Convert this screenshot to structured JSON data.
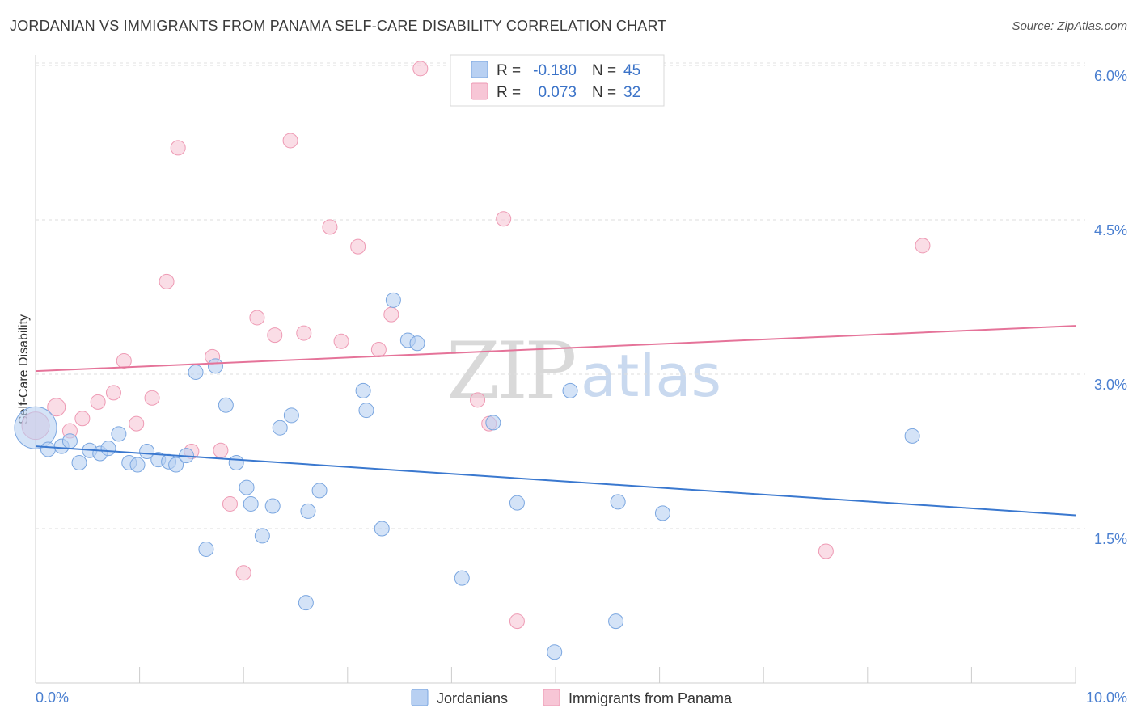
{
  "header": {
    "title": "JORDANIAN VS IMMIGRANTS FROM PANAMA SELF-CARE DISABILITY CORRELATION CHART",
    "source": "Source: ZipAtlas.com"
  },
  "watermark": {
    "zip": "ZIP",
    "atlas": "atlas"
  },
  "colors": {
    "blue_fill": "#b8d0f2",
    "blue_stroke": "#7aa6e0",
    "blue_line": "#3a78cf",
    "pink_fill": "#f7c6d6",
    "pink_stroke": "#ee9ab4",
    "pink_line": "#e57399"
  },
  "legend": {
    "rows": [
      {
        "r_label": "R =",
        "r_value": "-0.180",
        "n_label": "N =",
        "n_value": "45"
      },
      {
        "r_label": "R =",
        "r_value": "0.073",
        "n_label": "N =",
        "n_value": "32"
      }
    ]
  },
  "chart_data": {
    "type": "scatter",
    "ylabel": "Self-Care Disability",
    "xlim": [
      0,
      10
    ],
    "ylim": [
      0,
      6.4
    ],
    "x_tick_labels": [
      "0.0%",
      "10.0%"
    ],
    "y_ticks": [
      1.5,
      3.0,
      4.5,
      6.0
    ],
    "y_tick_labels": [
      "1.5%",
      "3.0%",
      "4.5%",
      "6.0%"
    ],
    "grid": true,
    "legend_position": "top-center",
    "series": [
      {
        "name": "Jordanians",
        "color": "#b8d0f2",
        "trend": [
          [
            0,
            2.3
          ],
          [
            10,
            1.63
          ]
        ],
        "points": [
          [
            0.0,
            2.48,
            26
          ],
          [
            0.12,
            2.27,
            9
          ],
          [
            0.25,
            2.3,
            9
          ],
          [
            0.33,
            2.35,
            9
          ],
          [
            0.42,
            2.14,
            9
          ],
          [
            0.52,
            2.26,
            9
          ],
          [
            0.62,
            2.23,
            9
          ],
          [
            0.7,
            2.28,
            9
          ],
          [
            0.8,
            2.42,
            9
          ],
          [
            0.9,
            2.14,
            9
          ],
          [
            0.98,
            2.12,
            9
          ],
          [
            1.07,
            2.25,
            9
          ],
          [
            1.18,
            2.17,
            9
          ],
          [
            1.28,
            2.15,
            9
          ],
          [
            1.35,
            2.12,
            9
          ],
          [
            1.45,
            2.21,
            9
          ],
          [
            1.54,
            3.02,
            9
          ],
          [
            1.64,
            1.3,
            9
          ],
          [
            1.73,
            3.08,
            9
          ],
          [
            1.83,
            2.7,
            9
          ],
          [
            1.93,
            2.14,
            9
          ],
          [
            2.03,
            1.9,
            9
          ],
          [
            2.07,
            1.74,
            9
          ],
          [
            2.18,
            1.43,
            9
          ],
          [
            2.28,
            1.72,
            9
          ],
          [
            2.35,
            2.48,
            9
          ],
          [
            2.46,
            2.6,
            9
          ],
          [
            2.6,
            0.78,
            9
          ],
          [
            2.62,
            1.67,
            9
          ],
          [
            2.73,
            1.87,
            9
          ],
          [
            3.15,
            2.84,
            9
          ],
          [
            3.18,
            2.65,
            9
          ],
          [
            3.33,
            1.5,
            9
          ],
          [
            3.44,
            3.72,
            9
          ],
          [
            3.58,
            3.33,
            9
          ],
          [
            3.67,
            3.3,
            9
          ],
          [
            4.1,
            1.02,
            9
          ],
          [
            4.4,
            2.53,
            9
          ],
          [
            4.63,
            1.75,
            9
          ],
          [
            4.99,
            0.3,
            9
          ],
          [
            5.14,
            2.84,
            9
          ],
          [
            5.58,
            0.6,
            9
          ],
          [
            5.6,
            1.76,
            9
          ],
          [
            6.03,
            1.65,
            9
          ],
          [
            8.43,
            2.4,
            9
          ]
        ]
      },
      {
        "name": "Immigrants from Panama",
        "color": "#f7c6d6",
        "trend": [
          [
            0,
            3.03
          ],
          [
            10,
            3.47
          ]
        ],
        "points": [
          [
            0.0,
            2.5,
            17
          ],
          [
            0.2,
            2.68,
            11
          ],
          [
            0.33,
            2.45,
            9
          ],
          [
            0.45,
            2.57,
            9
          ],
          [
            0.6,
            2.73,
            9
          ],
          [
            0.75,
            2.82,
            9
          ],
          [
            0.85,
            3.13,
            9
          ],
          [
            0.97,
            2.52,
            9
          ],
          [
            1.12,
            2.77,
            9
          ],
          [
            1.26,
            3.9,
            9
          ],
          [
            1.37,
            5.2,
            9
          ],
          [
            1.5,
            2.25,
            9
          ],
          [
            1.7,
            3.17,
            9
          ],
          [
            1.78,
            2.26,
            9
          ],
          [
            1.87,
            1.74,
            9
          ],
          [
            2.0,
            1.07,
            9
          ],
          [
            2.13,
            3.55,
            9
          ],
          [
            2.3,
            3.38,
            9
          ],
          [
            2.45,
            5.27,
            9
          ],
          [
            2.58,
            3.4,
            9
          ],
          [
            2.83,
            4.43,
            9
          ],
          [
            2.94,
            3.32,
            9
          ],
          [
            3.1,
            4.24,
            9
          ],
          [
            3.3,
            3.24,
            9
          ],
          [
            3.42,
            3.58,
            9
          ],
          [
            3.7,
            5.97,
            9
          ],
          [
            4.25,
            2.75,
            9
          ],
          [
            4.36,
            2.52,
            9
          ],
          [
            4.5,
            4.51,
            9
          ],
          [
            4.63,
            0.6,
            9
          ],
          [
            7.6,
            1.28,
            9
          ],
          [
            8.53,
            4.25,
            9
          ]
        ]
      }
    ]
  }
}
